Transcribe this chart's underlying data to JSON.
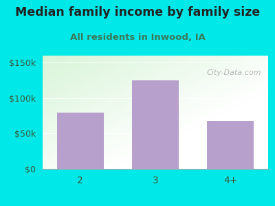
{
  "categories": [
    "2",
    "3",
    "4+"
  ],
  "values": [
    80000,
    125000,
    68000
  ],
  "bar_color": "#b8a0cc",
  "background_color": "#00e8e8",
  "title": "Median family income by family size",
  "subtitle": "All residents in Inwood, IA",
  "title_color": "#222222",
  "subtitle_color": "#3a7a5a",
  "tick_color": "#3a5a3a",
  "ytick_labels": [
    "$0",
    "$50k",
    "$100k",
    "$150k"
  ],
  "ytick_values": [
    0,
    50000,
    100000,
    150000
  ],
  "ylim": [
    0,
    160000
  ],
  "watermark": "City-Data.com",
  "title_fontsize": 12.5,
  "subtitle_fontsize": 9.5,
  "tick_fontsize": 9
}
